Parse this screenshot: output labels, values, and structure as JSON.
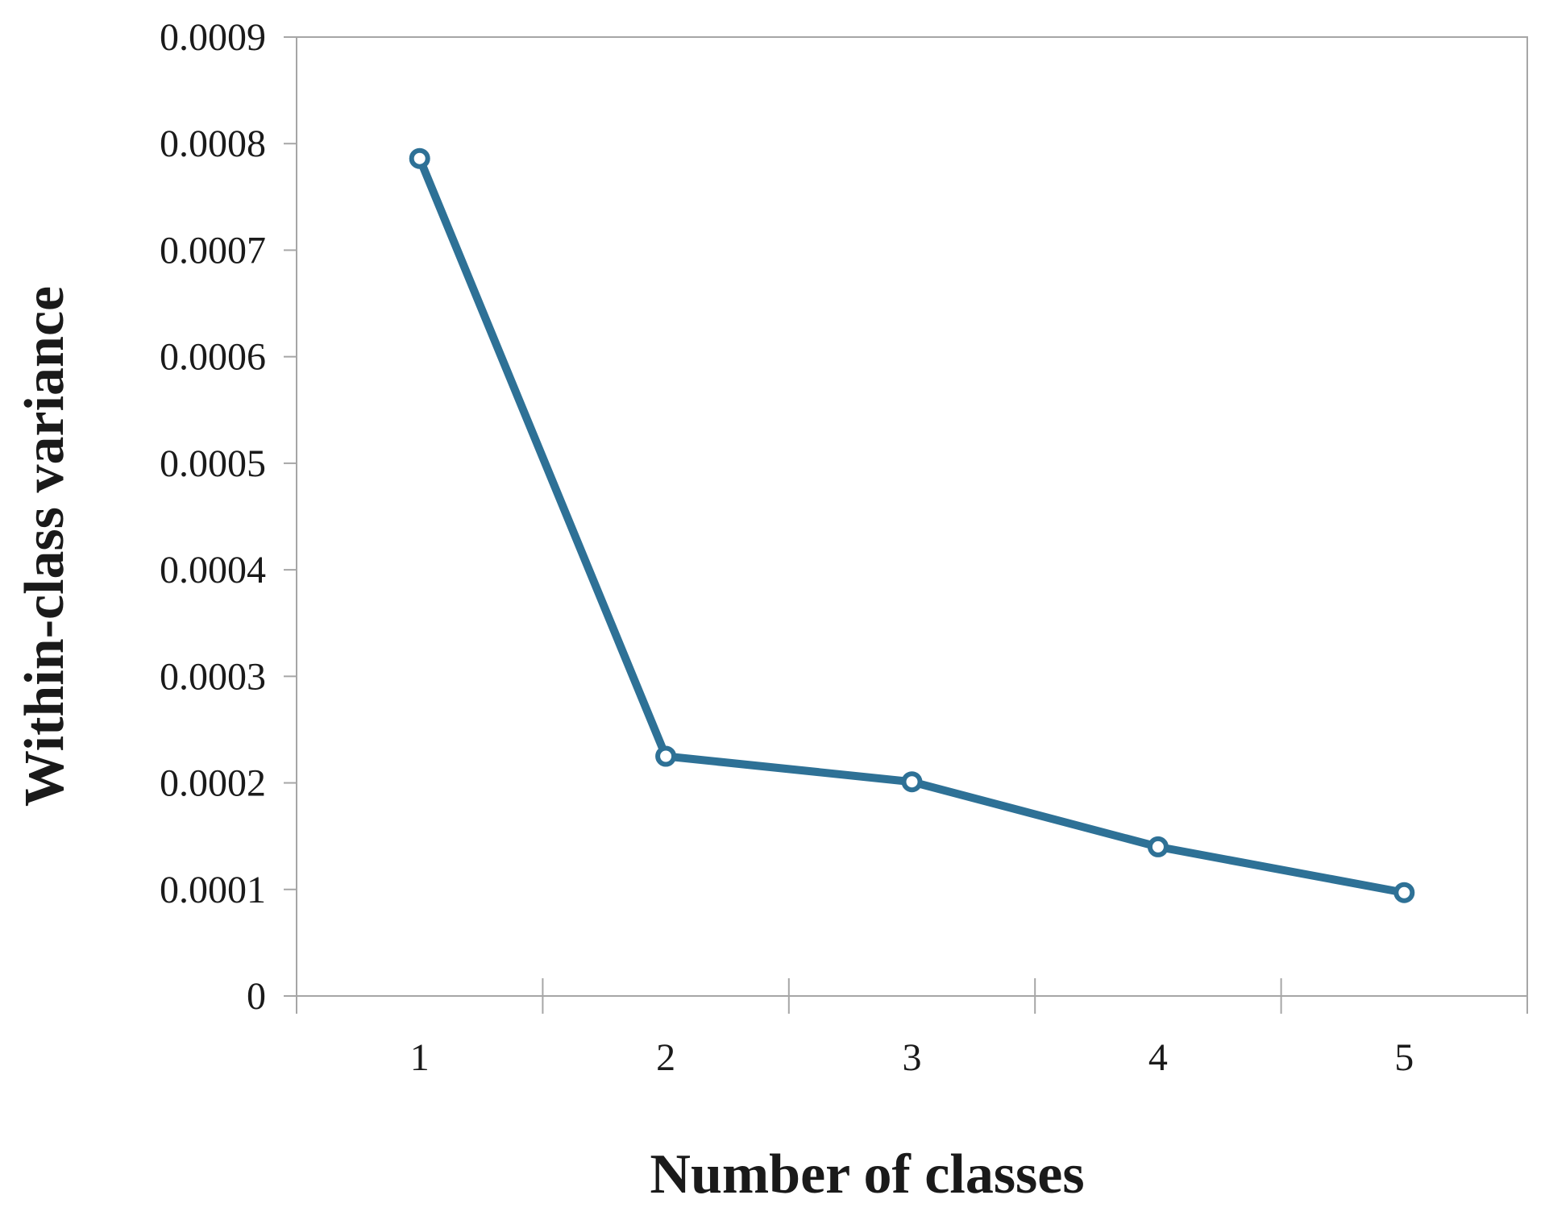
{
  "chart_data": {
    "type": "line",
    "title": "",
    "xlabel": "Number of classes",
    "ylabel": "Within-class variance",
    "categories": [
      "1",
      "2",
      "3",
      "4",
      "5"
    ],
    "series": [
      {
        "values": [
          0.000786,
          0.000225,
          0.000201,
          0.00014,
          9.7e-05
        ]
      }
    ],
    "ylim": [
      0,
      0.0009
    ],
    "yticks": [
      "0",
      "0.0001",
      "0.0002",
      "0.0003",
      "0.0004",
      "0.0005",
      "0.0006",
      "0.0007",
      "0.0008",
      "0.0009"
    ],
    "grid": false,
    "legend": "none",
    "colors": {
      "line": "#2e7196",
      "axis": "#a6a6a6",
      "text": "#1a1a1a"
    }
  }
}
